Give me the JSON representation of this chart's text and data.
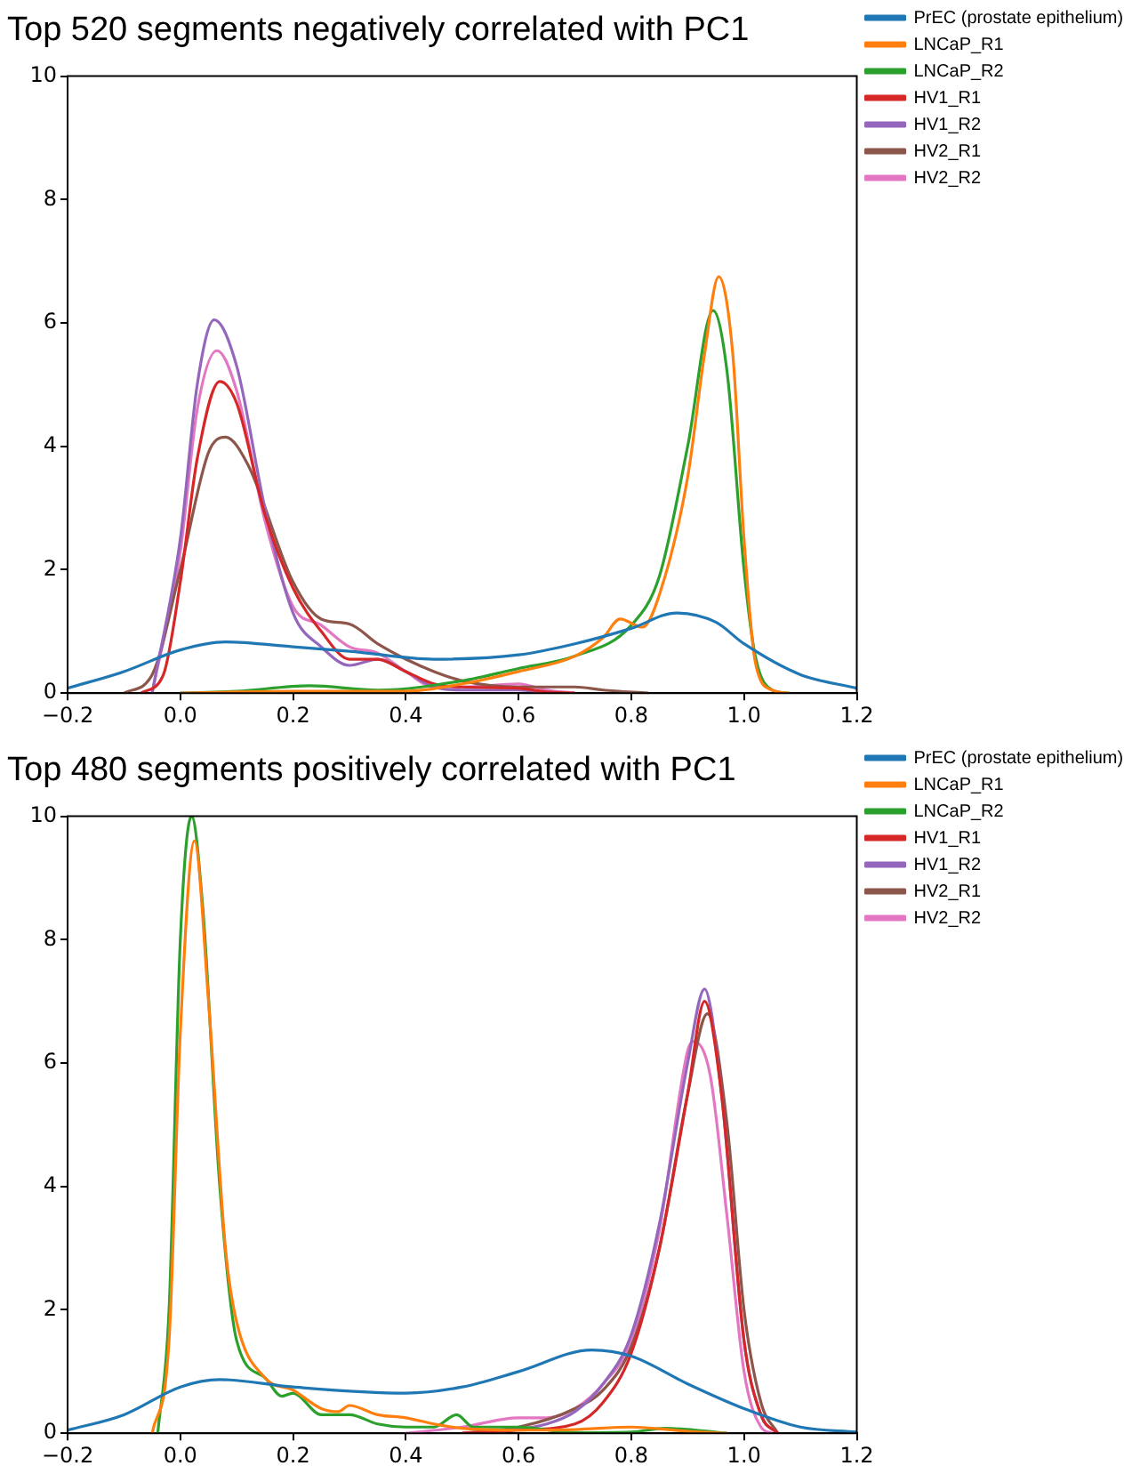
{
  "chart_data": [
    {
      "type": "line",
      "title": "Top 520 segments negatively correlated with PC1",
      "xlim": [
        -0.2,
        1.2
      ],
      "ylim": [
        0,
        10
      ],
      "xticks": [
        {
          "value": -0.2,
          "label": "−0.2"
        },
        {
          "value": 0,
          "label": "0.0"
        },
        {
          "value": 0.2,
          "label": "0.2"
        },
        {
          "value": 0.4,
          "label": "0.4"
        },
        {
          "value": 0.6,
          "label": "0.6"
        },
        {
          "value": 0.8,
          "label": "0.8"
        },
        {
          "value": 1,
          "label": "1.0"
        },
        {
          "value": 1.2,
          "label": "1.2"
        }
      ],
      "yticks": [
        0,
        2,
        4,
        6,
        8,
        10
      ],
      "grid": false,
      "legend": "top right",
      "marker": "none",
      "line_style": "solid",
      "series": [
        {
          "name": "PrEC (prostate epithelium)",
          "color": "#1f77b4",
          "x": [
            -0.2,
            -0.1,
            0,
            0.08,
            0.2,
            0.3,
            0.45,
            0.6,
            0.7,
            0.8,
            0.88,
            0.95,
            1,
            1.1,
            1.2
          ],
          "values": [
            0.08,
            0.35,
            0.7,
            0.83,
            0.75,
            0.68,
            0.55,
            0.62,
            0.8,
            1.05,
            1.3,
            1.15,
            0.8,
            0.3,
            0.08
          ]
        },
        {
          "name": "LNCaP_R1",
          "color": "#ff7f0e",
          "x": [
            0,
            0.2,
            0.4,
            0.5,
            0.6,
            0.7,
            0.75,
            0.78,
            0.82,
            0.85,
            0.9,
            0.93,
            0.955,
            0.98,
            1,
            1.02,
            1.05,
            1.08
          ],
          "values": [
            0,
            0.03,
            0.03,
            0.15,
            0.35,
            0.6,
            0.9,
            1.2,
            1.07,
            1.6,
            3.5,
            5.5,
            6.75,
            5.5,
            2.5,
            0.5,
            0.05,
            0
          ]
        },
        {
          "name": "LNCaP_R2",
          "color": "#2ca02c",
          "x": [
            0,
            0.1,
            0.23,
            0.35,
            0.5,
            0.6,
            0.7,
            0.8,
            0.85,
            0.9,
            0.945,
            0.97,
            1,
            1.02,
            1.05,
            1.08
          ],
          "values": [
            0,
            0.03,
            0.12,
            0.05,
            0.2,
            0.4,
            0.6,
            1.1,
            1.9,
            4,
            6.2,
            5.2,
            2,
            0.6,
            0.05,
            0
          ]
        },
        {
          "name": "HV1_R1",
          "color": "#d62728",
          "x": [
            -0.07,
            -0.03,
            0,
            0.03,
            0.07,
            0.1,
            0.15,
            0.2,
            0.25,
            0.3,
            0.35,
            0.4,
            0.45,
            0.5,
            0.6,
            0.65,
            0.7
          ],
          "values": [
            0,
            0.3,
            1.8,
            3.8,
            5.05,
            4.7,
            2.9,
            1.7,
            1,
            0.55,
            0.55,
            0.35,
            0.15,
            0.1,
            0.08,
            0.02,
            0
          ]
        },
        {
          "name": "HV1_R2",
          "color": "#9467bd",
          "x": [
            -0.05,
            0,
            0.03,
            0.06,
            0.1,
            0.15,
            0.2,
            0.25,
            0.3,
            0.35,
            0.4,
            0.45,
            0.5,
            0.6,
            0.65
          ],
          "values": [
            0,
            2.5,
            5,
            6.05,
            5.3,
            3,
            1.3,
            0.75,
            0.45,
            0.55,
            0.35,
            0.1,
            0.05,
            0.05,
            0
          ]
        },
        {
          "name": "HV2_R1",
          "color": "#8c564b",
          "x": [
            -0.1,
            -0.05,
            0,
            0.05,
            0.08,
            0.12,
            0.2,
            0.25,
            0.3,
            0.35,
            0.4,
            0.45,
            0.5,
            0.6,
            0.7,
            0.75,
            0.83
          ],
          "values": [
            0,
            0.3,
            2,
            3.9,
            4.15,
            3.7,
            1.8,
            1.2,
            1.12,
            0.8,
            0.55,
            0.35,
            0.2,
            0.1,
            0.1,
            0.05,
            0
          ]
        },
        {
          "name": "HV2_R2",
          "color": "#e377c2",
          "x": [
            -0.05,
            0,
            0.03,
            0.065,
            0.1,
            0.15,
            0.2,
            0.25,
            0.3,
            0.35,
            0.4,
            0.45,
            0.5,
            0.6,
            0.65,
            0.7
          ],
          "values": [
            0,
            2.3,
            4.6,
            5.55,
            4.9,
            2.8,
            1.4,
            1.1,
            0.75,
            0.65,
            0.35,
            0.1,
            0.1,
            0.15,
            0.05,
            0
          ]
        }
      ]
    },
    {
      "type": "line",
      "title": "Top 480 segments positively correlated with PC1",
      "xlim": [
        -0.2,
        1.2
      ],
      "ylim": [
        0,
        10
      ],
      "xticks": [
        {
          "value": -0.2,
          "label": "−0.2"
        },
        {
          "value": 0,
          "label": "0.0"
        },
        {
          "value": 0.2,
          "label": "0.2"
        },
        {
          "value": 0.4,
          "label": "0.4"
        },
        {
          "value": 0.6,
          "label": "0.6"
        },
        {
          "value": 0.8,
          "label": "0.8"
        },
        {
          "value": 1,
          "label": "1.0"
        },
        {
          "value": 1.2,
          "label": "1.2"
        }
      ],
      "yticks": [
        0,
        2,
        4,
        6,
        8,
        10
      ],
      "grid": false,
      "legend": "top right",
      "marker": "none",
      "line_style": "solid",
      "series": [
        {
          "name": "PrEC (prostate epithelium)",
          "color": "#1f77b4",
          "x": [
            -0.2,
            -0.1,
            0,
            0.07,
            0.2,
            0.4,
            0.5,
            0.6,
            0.73,
            0.8,
            0.9,
            1,
            1.1,
            1.2
          ],
          "values": [
            0.05,
            0.3,
            0.75,
            0.87,
            0.75,
            0.65,
            0.75,
            1,
            1.35,
            1.25,
            0.8,
            0.4,
            0.1,
            0.02
          ]
        },
        {
          "name": "LNCaP_R1",
          "color": "#ff7f0e",
          "x": [
            -0.05,
            -0.02,
            0,
            0.025,
            0.05,
            0.08,
            0.1,
            0.15,
            0.2,
            0.25,
            0.28,
            0.3,
            0.35,
            0.4,
            0.45,
            0.5,
            0.6,
            0.7,
            0.8,
            0.9,
            0.97
          ],
          "values": [
            0,
            1.5,
            6.5,
            9.6,
            7,
            3,
            1.8,
            0.9,
            0.7,
            0.4,
            0.35,
            0.45,
            0.3,
            0.25,
            0.15,
            0.08,
            0.05,
            0.06,
            0.1,
            0.03,
            0
          ]
        },
        {
          "name": "LNCaP_R2",
          "color": "#2ca02c",
          "x": [
            -0.04,
            -0.02,
            0,
            0.02,
            0.04,
            0.07,
            0.1,
            0.15,
            0.18,
            0.2,
            0.25,
            0.3,
            0.35,
            0.4,
            0.45,
            0.49,
            0.52,
            0.6,
            0.7,
            0.8,
            0.86,
            0.97
          ],
          "values": [
            0,
            2,
            8,
            10,
            8.5,
            4,
            1.5,
            0.9,
            0.6,
            0.65,
            0.3,
            0.3,
            0.15,
            0.1,
            0.1,
            0.3,
            0.1,
            0.1,
            0.01,
            0.02,
            0.08,
            0
          ]
        },
        {
          "name": "HV1_R1",
          "color": "#d62728",
          "x": [
            0.5,
            0.6,
            0.7,
            0.75,
            0.8,
            0.85,
            0.9,
            0.93,
            0.96,
            1,
            1.03,
            1.06
          ],
          "values": [
            0,
            0.05,
            0.15,
            0.5,
            1.3,
            3,
            5.5,
            7,
            5.5,
            1.5,
            0.3,
            0
          ]
        },
        {
          "name": "HV1_R2",
          "color": "#9467bd",
          "x": [
            0.55,
            0.65,
            0.7,
            0.75,
            0.8,
            0.85,
            0.9,
            0.93,
            0.96,
            1,
            1.03,
            1.06
          ],
          "values": [
            0,
            0.15,
            0.35,
            0.8,
            1.6,
            3.4,
            6,
            7.2,
            5.5,
            1.5,
            0.3,
            0
          ]
        },
        {
          "name": "HV2_R1",
          "color": "#8c564b",
          "x": [
            0.5,
            0.6,
            0.7,
            0.75,
            0.8,
            0.85,
            0.9,
            0.935,
            0.97,
            1,
            1.03,
            1.06
          ],
          "values": [
            0,
            0.1,
            0.4,
            0.7,
            1.4,
            3,
            5.5,
            6.8,
            5,
            2,
            0.5,
            0
          ]
        },
        {
          "name": "HV2_R2",
          "color": "#e377c2",
          "x": [
            0.4,
            0.5,
            0.6,
            0.65,
            0.7,
            0.75,
            0.8,
            0.85,
            0.9,
            0.91,
            0.94,
            0.97,
            1,
            1.03,
            1.05
          ],
          "values": [
            0,
            0.1,
            0.25,
            0.25,
            0.4,
            0.8,
            1.5,
            3.3,
            6.2,
            6.35,
            5.8,
            3.5,
            1,
            0.1,
            0
          ]
        }
      ]
    }
  ]
}
